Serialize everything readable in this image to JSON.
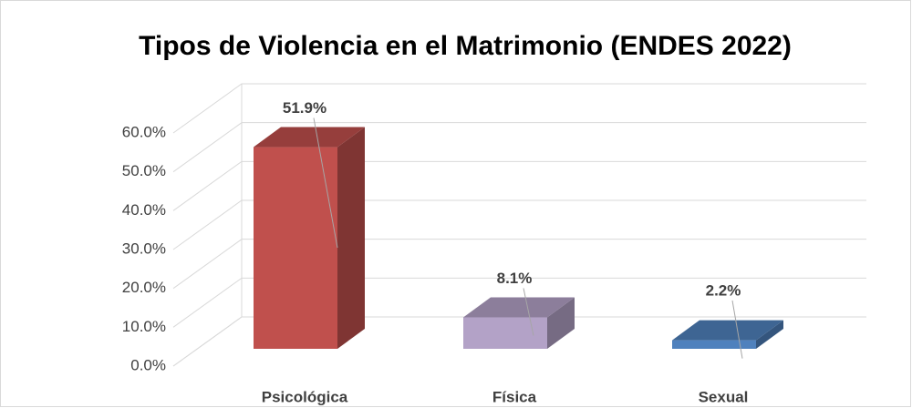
{
  "chart_data": {
    "type": "bar3d",
    "title": "Tipos de Violencia en el Matrimonio (ENDES 2022)",
    "categories": [
      "Psicológica",
      "Física",
      "Sexual"
    ],
    "values": [
      51.9,
      8.1,
      2.2
    ],
    "value_labels": [
      "51.9%",
      "8.1%",
      "2.2%"
    ],
    "colors": [
      "#c0504d",
      "#b3a2c7",
      "#4f81bd"
    ],
    "ylim": [
      0,
      60
    ],
    "yticks": [
      {
        "value": 0,
        "label": "0.0%"
      },
      {
        "value": 10,
        "label": "10.0%"
      },
      {
        "value": 20,
        "label": "20.0%"
      },
      {
        "value": 30,
        "label": "30.0%"
      },
      {
        "value": 40,
        "label": "40.0%"
      },
      {
        "value": 50,
        "label": "50.0%"
      },
      {
        "value": 60,
        "label": "60.0%"
      }
    ],
    "grid": true
  }
}
